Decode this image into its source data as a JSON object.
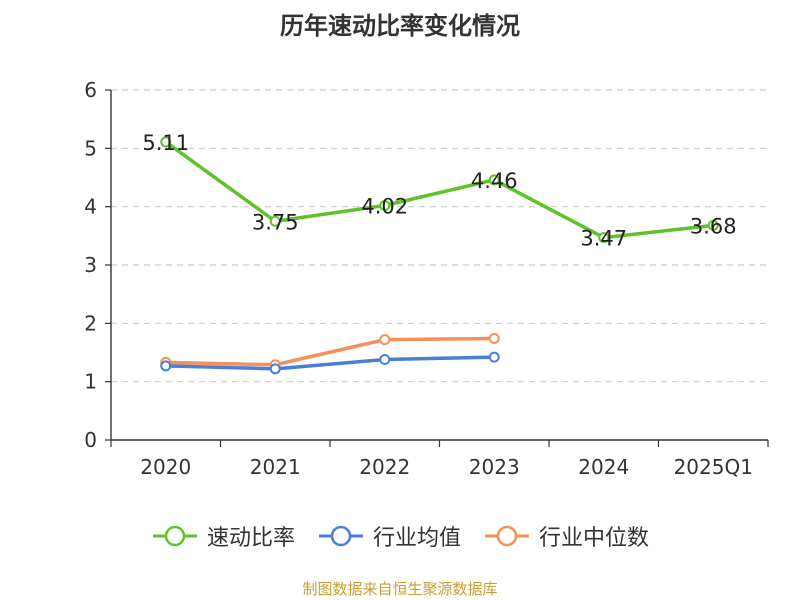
{
  "title": "历年速动比率变化情况",
  "source": "制图数据来自恒生聚源数据库",
  "chart_data": {
    "type": "line",
    "title": "历年速动比率变化情况",
    "categories": [
      "2020",
      "2021",
      "2022",
      "2023",
      "2024",
      "2025Q1"
    ],
    "ylim": [
      0,
      6
    ],
    "yticks": [
      "0",
      "1",
      "2",
      "3",
      "4",
      "5",
      "6"
    ],
    "grid": true,
    "legend_position": "bottom",
    "series": [
      {
        "name": "速动比率",
        "color": "#5ec22a",
        "values": [
          5.11,
          3.75,
          4.02,
          4.46,
          3.47,
          3.68
        ],
        "labels": [
          "5.11",
          "3.75",
          "4.02",
          "4.46",
          "3.47",
          "3.68"
        ]
      },
      {
        "name": "行业均值",
        "color": "#4a7fd6",
        "values": [
          1.27,
          1.22,
          1.38,
          1.42,
          null,
          null
        ]
      },
      {
        "name": "行业中位数",
        "color": "#f5905a",
        "values": [
          1.33,
          1.29,
          1.72,
          1.74,
          null,
          null
        ]
      }
    ]
  }
}
